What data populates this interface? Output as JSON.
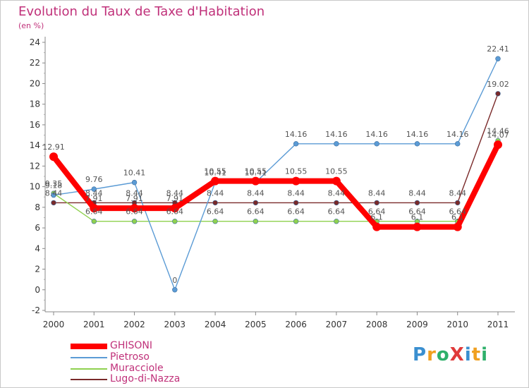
{
  "header": {
    "title": "Evolution du Taux de Taxe d'Habitation",
    "subtitle": "(en %)"
  },
  "logo": {
    "text": "ProXiti",
    "letters": [
      "P",
      "r",
      "o",
      "X",
      "i",
      "t",
      "i"
    ],
    "colors": [
      "#3a8fd0",
      "#f0a020",
      "#2eb06a",
      "#e03a3a",
      "#3a8fd0",
      "#f0a020",
      "#2eb06a"
    ]
  },
  "chart_data": {
    "type": "line",
    "title": "Evolution du Taux de Taxe d'Habitation",
    "subtitle": "(en %)",
    "xlabel": "",
    "ylabel": "",
    "categories": [
      "2000",
      "2001",
      "2002",
      "2003",
      "2004",
      "2005",
      "2006",
      "2007",
      "2008",
      "2009",
      "2010",
      "2011"
    ],
    "ylim": [
      -2,
      24
    ],
    "yticks": [
      -2,
      0,
      2,
      4,
      6,
      8,
      10,
      12,
      14,
      16,
      18,
      20,
      22,
      24
    ],
    "grid": false,
    "legend_position": "bottom-left",
    "series": [
      {
        "name": "GHISONI",
        "color": "#ff0000",
        "values": [
          12.91,
          7.91,
          7.91,
          7.91,
          10.55,
          10.55,
          10.55,
          10.55,
          6.1,
          6.1,
          6.1,
          14.07
        ],
        "labels": [
          "12.91",
          "7.91",
          "7.91",
          "7.91",
          "10.55",
          "10.55",
          "10.55",
          "10.55",
          "6.1",
          "6.1",
          "6.1",
          "14.07"
        ]
      },
      {
        "name": "Pietroso",
        "color": "#5b9bd5",
        "values": [
          9.18,
          9.76,
          10.41,
          0,
          10.41,
          10.41,
          14.16,
          14.16,
          14.16,
          14.16,
          14.16,
          22.41
        ],
        "labels": [
          "9.18",
          "9.76",
          "10.41",
          "0",
          "10.41",
          "10.41",
          "14.16",
          "14.16",
          "14.16",
          "14.16",
          "14.16",
          "22.41"
        ]
      },
      {
        "name": "Muracciole",
        "color": "#8fd14f",
        "values": [
          9.35,
          6.64,
          6.64,
          6.64,
          6.64,
          6.64,
          6.64,
          6.64,
          6.64,
          6.64,
          6.64,
          14.46
        ],
        "labels": [
          "9.35",
          "6.64",
          "6.64",
          "6.64",
          "6.64",
          "6.64",
          "6.64",
          "6.64",
          "6.64",
          "6.64",
          "6.64",
          "14.46"
        ]
      },
      {
        "name": "Lugo-di-Nazza",
        "color": "#7a2a2a",
        "values": [
          8.44,
          8.44,
          8.44,
          8.44,
          8.44,
          8.44,
          8.44,
          8.44,
          8.44,
          8.44,
          8.44,
          19.02
        ],
        "labels": [
          "8.44",
          "8.44",
          "8.44",
          "8.44",
          "8.44",
          "8.44",
          "8.44",
          "8.44",
          "8.44",
          "8.44",
          "8.44",
          "19.02"
        ]
      }
    ]
  }
}
